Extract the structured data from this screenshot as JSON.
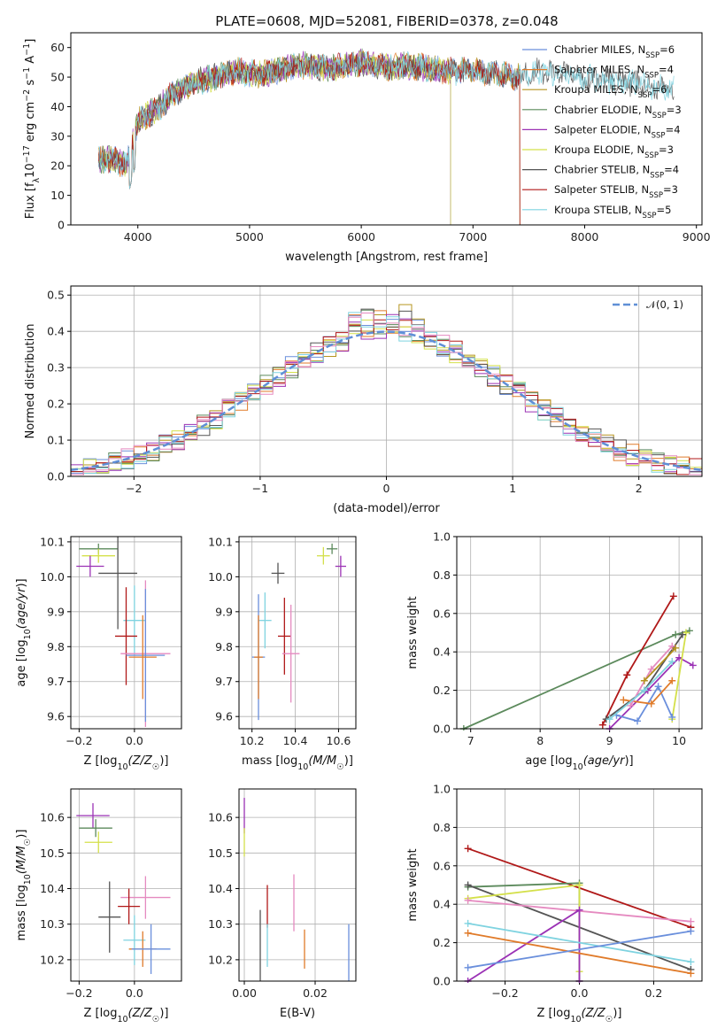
{
  "title": "PLATE=0608, MJD=52081, FIBERID=0378, z=0.048",
  "colors": {
    "Chabrier MILES": "#6a8fdc",
    "Salpeter MILES": "#e07b2a",
    "Kroupa MILES": "#b5941f",
    "Chabrier ELODIE": "#5c8a5c",
    "Salpeter ELODIE": "#9b32b5",
    "Kroupa ELODIE": "#d4e04a",
    "Chabrier STELIB": "#555555",
    "Salpeter STELIB": "#b01818",
    "Kroupa STELIB": "#7fd3e0",
    "pink": "#e58ac0",
    "normal": "#5f8fd6"
  },
  "chart_data": [
    {
      "panel": "spectrum",
      "type": "line",
      "xlabel": "wavelength [Angstrom, rest frame]",
      "ylabel": "Flux [f_λ 10^-17 erg cm^-2 s^-1 A^-1]",
      "xlim": [
        3400,
        9050
      ],
      "ylim": [
        0,
        65
      ],
      "xticks": [
        "4000",
        "5000",
        "6000",
        "7000",
        "8000",
        "9000"
      ],
      "yticks": [
        "0",
        "10",
        "20",
        "30",
        "40",
        "50",
        "60"
      ],
      "grid": false,
      "legend_position": "upper-right",
      "series": [
        {
          "name": "Chabrier MILES, N_SSP=6",
          "color_key": "Chabrier MILES",
          "x_range": [
            3650,
            7420
          ]
        },
        {
          "name": "Salpeter MILES, N_SSP=4",
          "color_key": "Salpeter MILES",
          "x_range": [
            3650,
            7420
          ]
        },
        {
          "name": "Kroupa MILES, N_SSP=6",
          "color_key": "Kroupa MILES",
          "x_range": [
            3650,
            7420
          ]
        },
        {
          "name": "Chabrier ELODIE, N_SSP=3",
          "color_key": "Chabrier ELODIE",
          "x_range": [
            3650,
            6800
          ]
        },
        {
          "name": "Salpeter ELODIE, N_SSP=4",
          "color_key": "Salpeter ELODIE",
          "x_range": [
            3650,
            6800
          ]
        },
        {
          "name": "Kroupa ELODIE, N_SSP=3",
          "color_key": "Kroupa ELODIE",
          "x_range": [
            3650,
            6800
          ]
        },
        {
          "name": "Chabrier STELIB, N_SSP=4",
          "color_key": "Chabrier STELIB",
          "x_range": [
            3650,
            8800
          ]
        },
        {
          "name": "Salpeter STELIB, N_SSP=3",
          "color_key": "Salpeter STELIB",
          "x_range": [
            3650,
            7420
          ]
        },
        {
          "name": "Kroupa STELIB, N_SSP=5",
          "color_key": "Kroupa STELIB",
          "x_range": [
            3650,
            8800
          ]
        }
      ],
      "continuum": {
        "x": [
          3650,
          3800,
          3900,
          3950,
          4000,
          4200,
          4300,
          4400,
          4500,
          4700,
          4900,
          5100,
          5200,
          5300,
          5500,
          5700,
          5900,
          6000,
          6200,
          6400,
          6600,
          6800,
          7000,
          7200,
          7400,
          7600,
          7800,
          8000,
          8200,
          8400,
          8600,
          8800
        ],
        "y": [
          22,
          22,
          20,
          28,
          35,
          40,
          44,
          46,
          48,
          50,
          52,
          51,
          52,
          53,
          54,
          53,
          54,
          55,
          53,
          54,
          53,
          52,
          52,
          51,
          50,
          52,
          51,
          50,
          49,
          48,
          47,
          46
        ]
      }
    },
    {
      "panel": "residuals",
      "type": "histogram",
      "xlabel": "(data-model)/error",
      "ylabel": "Normed distribution",
      "xlim": [
        -2.5,
        2.5
      ],
      "ylim": [
        0,
        0.525
      ],
      "xticks": [
        "−2",
        "−1",
        "0",
        "1",
        "2"
      ],
      "yticks": [
        "0.0",
        "0.1",
        "0.2",
        "0.3",
        "0.4",
        "0.5"
      ],
      "grid": true,
      "bin_width": 0.1,
      "legend_position": "upper-right",
      "reference_curve": {
        "name": "𝒩(0, 1)",
        "mean": 0,
        "sigma": 1
      }
    },
    {
      "panel": "Z-age",
      "type": "errorbar",
      "xlabel": "Z [log10(Z/Z☉)]",
      "ylabel": "age [log10(age/yr)]",
      "xlim": [
        -0.23,
        0.17
      ],
      "ylim": [
        9.565,
        10.115
      ],
      "xticks": [
        "−0.2",
        "0.0"
      ],
      "yticks": [
        "9.6",
        "9.7",
        "9.8",
        "9.9",
        "10.0",
        "10.1"
      ],
      "points": [
        {
          "c": "Chabrier ELODIE",
          "x": -0.13,
          "y": 10.08,
          "xe": 0.07,
          "ye": 0.015
        },
        {
          "c": "Kroupa ELODIE",
          "x": -0.13,
          "y": 10.06,
          "xe": 0.06,
          "ye": 0.02
        },
        {
          "c": "Salpeter ELODIE",
          "x": -0.16,
          "y": 10.03,
          "xe": 0.05,
          "ye": 0.03
        },
        {
          "c": "Chabrier STELIB",
          "x": -0.06,
          "y": 10.01,
          "xe": 0.07,
          "ye": 0.16
        },
        {
          "c": "Kroupa STELIB",
          "x": 0.0,
          "y": 9.875,
          "xe": 0.04,
          "ye": 0.1
        },
        {
          "c": "Salpeter STELIB",
          "x": -0.03,
          "y": 9.83,
          "xe": 0.04,
          "ye": 0.14
        },
        {
          "c": "pink",
          "x": 0.04,
          "y": 9.78,
          "xe": 0.09,
          "ye": 0.21
        },
        {
          "c": "Chabrier MILES",
          "x": 0.04,
          "y": 9.775,
          "xe": 0.07,
          "ye": 0.19
        },
        {
          "c": "Salpeter MILES",
          "x": 0.03,
          "y": 9.77,
          "xe": 0.05,
          "ye": 0.12
        }
      ]
    },
    {
      "panel": "mass-age",
      "type": "errorbar",
      "xlabel": "mass [log10(M/M☉)]",
      "ylabel": "",
      "xlim": [
        10.14,
        10.68
      ],
      "ylim": [
        9.565,
        10.115
      ],
      "xticks": [
        "10.2",
        "10.4",
        "10.6"
      ],
      "yticks": [
        "9.6",
        "9.7",
        "9.8",
        "9.9",
        "10.0",
        "10.1"
      ],
      "points": [
        {
          "c": "Chabrier ELODIE",
          "x": 10.57,
          "y": 10.08,
          "xe": 0.025,
          "ye": 0.015
        },
        {
          "c": "Kroupa ELODIE",
          "x": 10.53,
          "y": 10.06,
          "xe": 0.03,
          "ye": 0.025
        },
        {
          "c": "Salpeter ELODIE",
          "x": 10.61,
          "y": 10.03,
          "xe": 0.025,
          "ye": 0.03
        },
        {
          "c": "Chabrier STELIB",
          "x": 10.32,
          "y": 10.01,
          "xe": 0.03,
          "ye": 0.03
        },
        {
          "c": "Kroupa STELIB",
          "x": 10.26,
          "y": 9.875,
          "xe": 0.03,
          "ye": 0.08
        },
        {
          "c": "Salpeter STELIB",
          "x": 10.35,
          "y": 9.83,
          "xe": 0.03,
          "ye": 0.11
        },
        {
          "c": "pink",
          "x": 10.38,
          "y": 9.78,
          "xe": 0.04,
          "ye": 0.14
        },
        {
          "c": "Chabrier MILES",
          "x": 10.23,
          "y": 9.77,
          "xe": 0.03,
          "ye": 0.18
        },
        {
          "c": "Salpeter MILES",
          "x": 10.23,
          "y": 9.77,
          "xe": 0.02,
          "ye": 0.12
        }
      ]
    },
    {
      "panel": "age-weight",
      "type": "line",
      "xlabel": "age [log10(age/yr)]",
      "ylabel": "mass weight",
      "xlim": [
        6.8,
        10.33
      ],
      "ylim": [
        0,
        1
      ],
      "xticks": [
        "7",
        "8",
        "9",
        "10"
      ],
      "yticks": [
        "0.0",
        "0.2",
        "0.4",
        "0.6",
        "0.8",
        "1.0"
      ],
      "series": [
        {
          "c": "Chabrier ELODIE",
          "x": [
            6.9,
            9.95,
            10.15
          ],
          "y": [
            0.0,
            0.49,
            0.51
          ]
        },
        {
          "c": "Salpeter STELIB",
          "x": [
            8.9,
            9.25,
            9.92
          ],
          "y": [
            0.02,
            0.28,
            0.69
          ]
        },
        {
          "c": "Salpeter ELODIE",
          "x": [
            9.0,
            9.55,
            10.0,
            10.2
          ],
          "y": [
            0.0,
            0.2,
            0.37,
            0.33
          ]
        },
        {
          "c": "Kroupa ELODIE",
          "x": [
            9.9,
            10.1
          ],
          "y": [
            0.05,
            0.5
          ]
        },
        {
          "c": "Chabrier STELIB",
          "x": [
            8.95,
            9.5,
            10.05
          ],
          "y": [
            0.05,
            0.2,
            0.49
          ]
        },
        {
          "c": "Chabrier MILES",
          "x": [
            9.1,
            9.4,
            9.7,
            9.9
          ],
          "y": [
            0.07,
            0.04,
            0.22,
            0.06
          ]
        },
        {
          "c": "Salpeter MILES",
          "x": [
            9.2,
            9.6,
            9.9
          ],
          "y": [
            0.15,
            0.13,
            0.25
          ]
        },
        {
          "c": "pink",
          "x": [
            9.3,
            9.6,
            9.9
          ],
          "y": [
            0.12,
            0.31,
            0.43
          ]
        },
        {
          "c": "Kroupa STELIB",
          "x": [
            9.0,
            9.5,
            9.9
          ],
          "y": [
            0.05,
            0.2,
            0.35
          ]
        },
        {
          "c": "Kroupa MILES",
          "x": [
            9.5,
            9.95
          ],
          "y": [
            0.25,
            0.42
          ]
        }
      ]
    },
    {
      "panel": "Z-mass",
      "type": "errorbar",
      "xlabel": "Z [log10(Z/Z☉)]",
      "ylabel": "mass [log10(M/M☉)]",
      "xlim": [
        -0.23,
        0.17
      ],
      "ylim": [
        10.14,
        10.68
      ],
      "xticks": [
        "−0.2",
        "0.0"
      ],
      "yticks": [
        "10.2",
        "10.3",
        "10.4",
        "10.5",
        "10.6"
      ],
      "points": [
        {
          "c": "Salpeter ELODIE",
          "x": -0.15,
          "y": 10.605,
          "xe": 0.06,
          "ye": 0.035
        },
        {
          "c": "Chabrier ELODIE",
          "x": -0.14,
          "y": 10.57,
          "xe": 0.06,
          "ye": 0.025
        },
        {
          "c": "Kroupa ELODIE",
          "x": -0.13,
          "y": 10.53,
          "xe": 0.05,
          "ye": 0.03
        },
        {
          "c": "pink",
          "x": 0.04,
          "y": 10.375,
          "xe": 0.09,
          "ye": 0.06
        },
        {
          "c": "Salpeter STELIB",
          "x": -0.02,
          "y": 10.35,
          "xe": 0.04,
          "ye": 0.05
        },
        {
          "c": "Chabrier STELIB",
          "x": -0.09,
          "y": 10.32,
          "xe": 0.04,
          "ye": 0.1
        },
        {
          "c": "Kroupa STELIB",
          "x": 0.0,
          "y": 10.255,
          "xe": 0.04,
          "ye": 0.07
        },
        {
          "c": "Salpeter MILES",
          "x": 0.03,
          "y": 10.23,
          "xe": 0.05,
          "ye": 0.05
        },
        {
          "c": "Chabrier MILES",
          "x": 0.06,
          "y": 10.23,
          "xe": 0.07,
          "ye": 0.07
        }
      ]
    },
    {
      "panel": "EBV-mass",
      "type": "errorbar",
      "xlabel": "E(B-V)",
      "ylabel": "",
      "xlim": [
        -0.0015,
        0.0315
      ],
      "ylim": [
        10.14,
        10.68
      ],
      "xticks": [
        "0.00",
        "0.02"
      ],
      "yticks": [
        "10.2",
        "10.3",
        "10.4",
        "10.5",
        "10.6"
      ],
      "points": [
        {
          "c": "Salpeter ELODIE",
          "x": 0.0,
          "y": 10.605,
          "xe": 0,
          "ye": 0.05
        },
        {
          "c": "Kroupa ELODIE",
          "x": 0.0,
          "y": 10.53,
          "xe": 0,
          "ye": 0.04
        },
        {
          "c": "Chabrier STELIB",
          "x": 0.0045,
          "y": 10.24,
          "xe": 0,
          "ye": 0.1
        },
        {
          "c": "Salpeter STELIB",
          "x": 0.0065,
          "y": 10.35,
          "xe": 0,
          "ye": 0.06
        },
        {
          "c": "Kroupa STELIB",
          "x": 0.0065,
          "y": 10.24,
          "xe": 0,
          "ye": 0.06
        },
        {
          "c": "pink",
          "x": 0.014,
          "y": 10.36,
          "xe": 0,
          "ye": 0.08
        },
        {
          "c": "Salpeter MILES",
          "x": 0.017,
          "y": 10.23,
          "xe": 0,
          "ye": 0.055
        },
        {
          "c": "Chabrier MILES",
          "x": 0.0295,
          "y": 10.2,
          "xe": 0,
          "ye": 0.1
        }
      ]
    },
    {
      "panel": "Z-weight",
      "type": "line",
      "xlabel": "Z [log10(Z/Z☉)]",
      "ylabel": "mass weight",
      "xlim": [
        -0.33,
        0.33
      ],
      "ylim": [
        0,
        1
      ],
      "xticks": [
        "−0.2",
        "0.0",
        "0.2"
      ],
      "yticks": [
        "0.0",
        "0.2",
        "0.4",
        "0.6",
        "0.8",
        "1.0"
      ],
      "series": [
        {
          "c": "Salpeter STELIB",
          "x": [
            -0.3,
            0.3
          ],
          "y": [
            0.69,
            0.28
          ]
        },
        {
          "c": "Chabrier ELODIE",
          "x": [
            -0.3,
            0.0,
            0.0
          ],
          "y": [
            0.49,
            0.51,
            0.0
          ]
        },
        {
          "c": "Chabrier STELIB",
          "x": [
            -0.3,
            0.3
          ],
          "y": [
            0.5,
            0.06
          ]
        },
        {
          "c": "Kroupa ELODIE",
          "x": [
            -0.3,
            0.0,
            0.0
          ],
          "y": [
            0.43,
            0.5,
            0.05
          ]
        },
        {
          "c": "pink",
          "x": [
            -0.3,
            0.3
          ],
          "y": [
            0.42,
            0.31
          ]
        },
        {
          "c": "Salpeter ELODIE",
          "x": [
            -0.3,
            0.0,
            0.0
          ],
          "y": [
            0.0,
            0.37,
            0.0
          ]
        },
        {
          "c": "Kroupa STELIB",
          "x": [
            -0.3,
            0.3
          ],
          "y": [
            0.3,
            0.1
          ]
        },
        {
          "c": "Salpeter MILES",
          "x": [
            -0.3,
            0.3
          ],
          "y": [
            0.25,
            0.04
          ]
        },
        {
          "c": "Chabrier MILES",
          "x": [
            -0.3,
            0.3
          ],
          "y": [
            0.07,
            0.26
          ]
        }
      ]
    }
  ]
}
